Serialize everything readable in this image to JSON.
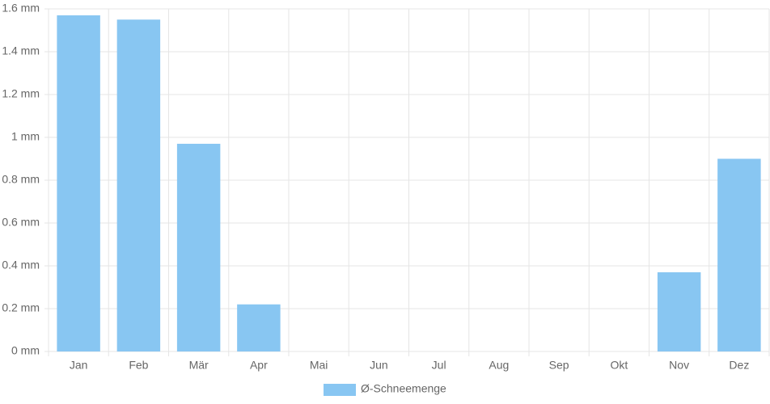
{
  "chart_data": {
    "type": "bar",
    "categories": [
      "Jan",
      "Feb",
      "Mär",
      "Apr",
      "Mai",
      "Jun",
      "Jul",
      "Aug",
      "Sep",
      "Okt",
      "Nov",
      "Dez"
    ],
    "series": [
      {
        "name": "Ø-Schneemenge",
        "color": "#88c6f2",
        "values": [
          1.57,
          1.55,
          0.97,
          0.22,
          0,
          0,
          0,
          0,
          0,
          0,
          0.37,
          0.9
        ]
      }
    ],
    "ylim": [
      0,
      1.6
    ],
    "yticks": [
      {
        "value": 0,
        "label": "0 mm"
      },
      {
        "value": 0.2,
        "label": "0.2 mm"
      },
      {
        "value": 0.4,
        "label": "0.4 mm"
      },
      {
        "value": 0.6,
        "label": "0.6 mm"
      },
      {
        "value": 0.8,
        "label": "0.8 mm"
      },
      {
        "value": 1,
        "label": "1 mm"
      },
      {
        "value": 1.2,
        "label": "1.2 mm"
      },
      {
        "value": 1.4,
        "label": "1.4 mm"
      },
      {
        "value": 1.6,
        "label": "1.6 mm"
      }
    ],
    "grid": true,
    "legend": "bottom"
  }
}
